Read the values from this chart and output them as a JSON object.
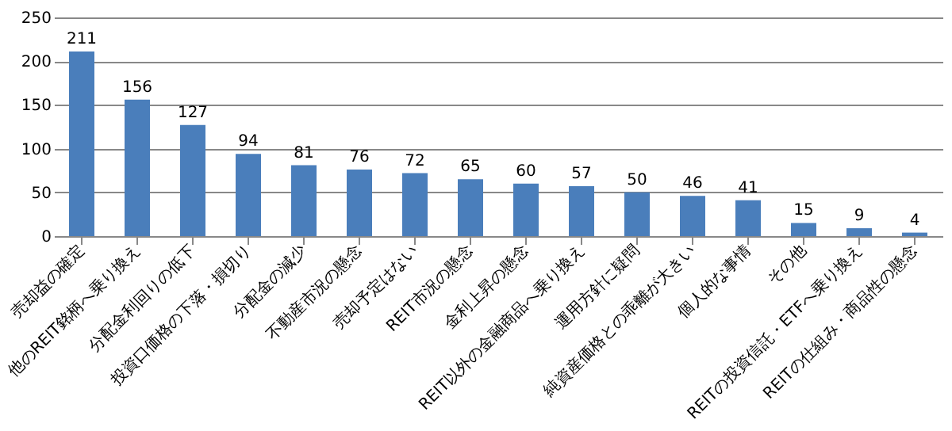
{
  "chart_data": {
    "type": "bar",
    "categories": [
      "売却益の確定",
      "他のREIT銘柄へ乗り換え",
      "分配金利回りの低下",
      "投資口価格の下落・損切り",
      "分配金の減少",
      "不動産市況の懸念",
      "売却予定はない",
      "REIT市況の懸念",
      "金利上昇の懸念",
      "REIT以外の金融商品へ乗り換え",
      "運用方針に疑問",
      "純資産価格との乖離が大きい",
      "個人的な事情",
      "その他",
      "REITの投資信託・ETFへ乗り換え",
      "REITの仕組み・商品性の懸念"
    ],
    "values": [
      211,
      156,
      127,
      94,
      81,
      76,
      72,
      65,
      60,
      57,
      50,
      46,
      41,
      15,
      9,
      4
    ],
    "color": "#4a7ebb",
    "ylim": [
      0,
      250
    ],
    "yticks": [
      0,
      50,
      100,
      150,
      200,
      250
    ],
    "grid": "y",
    "data_labels": true
  }
}
